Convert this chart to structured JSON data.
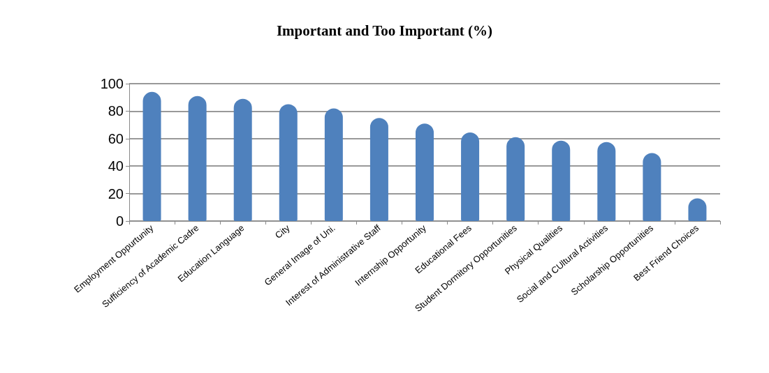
{
  "chart_data": {
    "type": "bar",
    "title": "Important and Too Important (%)",
    "categories": [
      "Employment Oppurtunity",
      "Sufficiency of Academic Cadre",
      "Education Language",
      "City",
      "General Image of Uni.",
      "Interest of Administrative Staff",
      "Internship Opportunity",
      "Educational Fees",
      "Student Dormitory Opportunities",
      "Physical Qualities",
      "Social and CUltural Activities",
      "Scholarship Opportunities",
      "Best Friend Choices"
    ],
    "values": [
      94,
      91,
      89,
      85,
      82,
      75,
      71,
      64.5,
      61,
      58.5,
      57.5,
      49.5,
      16.5
    ],
    "color": "#4f81bd",
    "ylim": [
      0,
      100
    ],
    "yticks": [
      0,
      20,
      40,
      60,
      80,
      100
    ],
    "grid": "y"
  }
}
